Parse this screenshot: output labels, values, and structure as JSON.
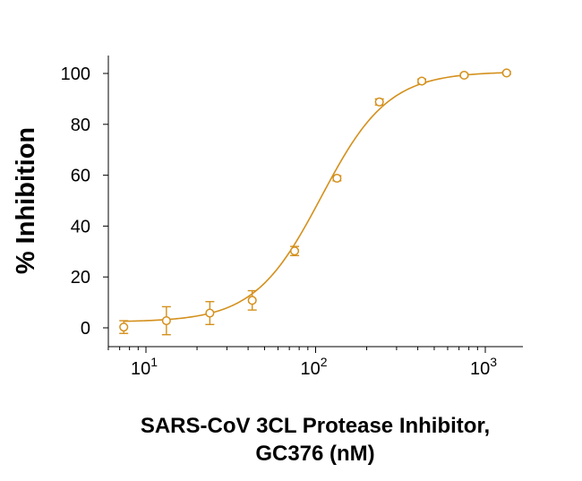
{
  "chart_data": {
    "type": "scatter",
    "xscale": "log",
    "ylabel": "% Inhibition",
    "xlabel_lines": [
      "SARS-CoV 3CL Protease Inhibitor,",
      "GC376 (nM)"
    ],
    "xlim": [
      5.5,
      1600
    ],
    "ylim": [
      -5,
      103
    ],
    "x_ticks": [
      {
        "value": 10,
        "base": "10",
        "exp": "1"
      },
      {
        "value": 100,
        "base": "10",
        "exp": "2"
      },
      {
        "value": 1000,
        "base": "10",
        "exp": "3"
      }
    ],
    "y_ticks": [
      {
        "value": 0,
        "label": "0"
      },
      {
        "value": 20,
        "label": "20"
      },
      {
        "value": 40,
        "label": "40"
      },
      {
        "value": 60,
        "label": "60"
      },
      {
        "value": 80,
        "label": "80"
      },
      {
        "value": 100,
        "label": "100"
      }
    ],
    "color": "#D4901C",
    "points": [
      {
        "x": 7.4,
        "y": 0.3,
        "err": 2.5
      },
      {
        "x": 13.2,
        "y": 2.8,
        "err": 5.5
      },
      {
        "x": 23.8,
        "y": 5.8,
        "err": 4.5
      },
      {
        "x": 42.3,
        "y": 10.8,
        "err": 3.8
      },
      {
        "x": 75.2,
        "y": 30.2,
        "err": 1.8
      },
      {
        "x": 133.6,
        "y": 58.8,
        "err": 1.0
      },
      {
        "x": 237.5,
        "y": 88.8,
        "err": 1.2
      },
      {
        "x": 422.4,
        "y": 97.0,
        "err": 0.8
      },
      {
        "x": 750.8,
        "y": 99.3,
        "err": 0.6
      },
      {
        "x": 1334.8,
        "y": 100.2,
        "err": 0.5
      }
    ],
    "fit": {
      "bottom": 2.3,
      "top": 100.7,
      "ec50": 108,
      "hill": 2.2,
      "x_range": [
        7.4,
        1334.8
      ]
    }
  }
}
